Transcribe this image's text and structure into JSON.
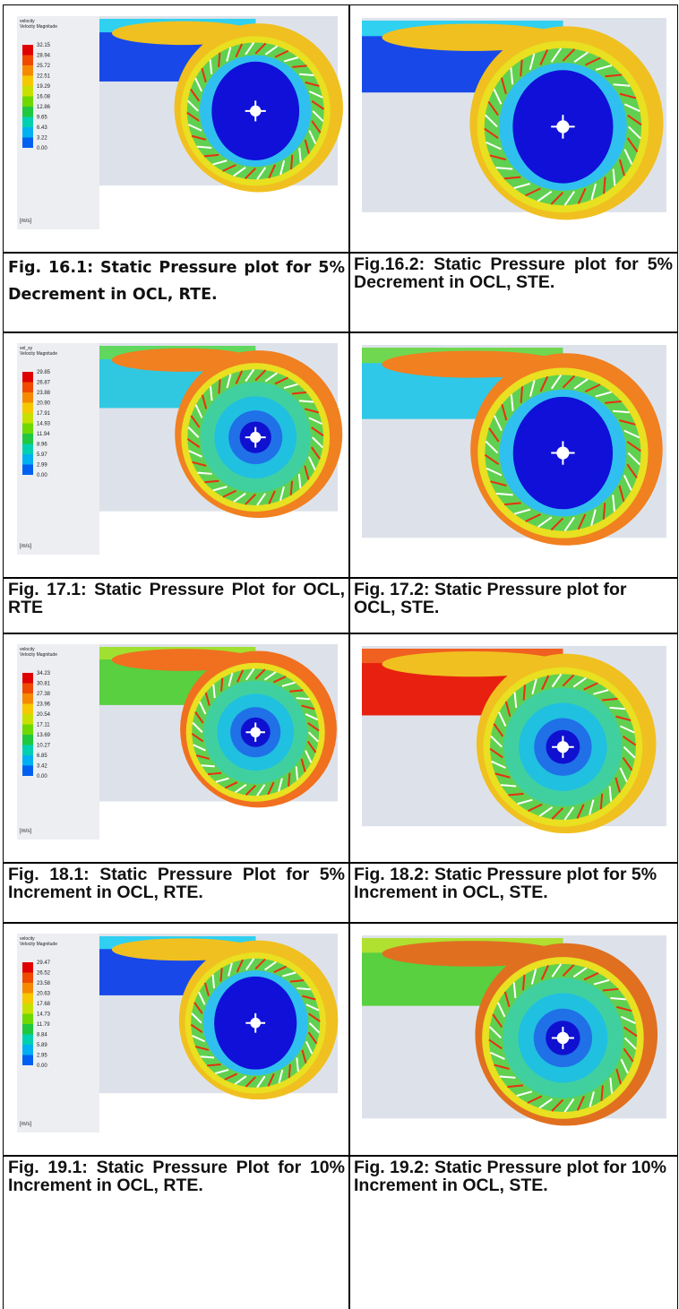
{
  "figures": [
    {
      "legend": {
        "title": "velocity",
        "subtitle": "Velocity Magnitude",
        "values": [
          "32.15",
          "28.94",
          "25.72",
          "22.51",
          "19.29",
          "16.08",
          "12.86",
          "9.65",
          "6.43",
          "3.22",
          "0.00"
        ],
        "unit": "[m/s]"
      },
      "caption": "Fig. 16.1: Static Pressure plot for 5% Decrement in OCL, RTE."
    },
    {
      "caption": "Fig.16.2: Static Pressure plot for 5% Decrement in OCL, STE."
    },
    {
      "legend": {
        "title": "vel_xy",
        "subtitle": "Velocity Magnitude",
        "values": [
          "29.85",
          "26.87",
          "23.88",
          "20.90",
          "17.91",
          "14.93",
          "11.94",
          "8.96",
          "5.97",
          "2.99",
          "0.00"
        ],
        "unit": "[m/s]"
      },
      "caption": "Fig. 17.1: Static Pressure Plot for OCL, RTE"
    },
    {
      "caption": "Fig. 17.2: Static Pressure plot for OCL, STE."
    },
    {
      "legend": {
        "title": "velocity",
        "subtitle": "Velocity Magnitude",
        "values": [
          "34.23",
          "30.81",
          "27.38",
          "23.96",
          "20.54",
          "17.11",
          "13.69",
          "10.27",
          "6.85",
          "3.42",
          "0.00"
        ],
        "unit": "[m/s]"
      },
      "caption": "Fig. 18.1: Static Pressure Plot for 5% Increment in OCL, RTE."
    },
    {
      "caption": "Fig. 18.2: Static Pressure plot for 5% Increment in OCL, STE."
    },
    {
      "legend": {
        "title": "velocity",
        "subtitle": "Velocity Magnitude",
        "values": [
          "29.47",
          "26.52",
          "23.58",
          "20.63",
          "17.68",
          "14.73",
          "11.79",
          "8.84",
          "5.89",
          "2.95",
          "0.00"
        ],
        "unit": "[m/s]"
      },
      "caption": "Fig. 19.1: Static Pressure Plot for 10% Increment in OCL, RTE."
    },
    {
      "caption": "Fig. 19.2: Static Pressure plot for 10% Increment in OCL, STE."
    }
  ]
}
